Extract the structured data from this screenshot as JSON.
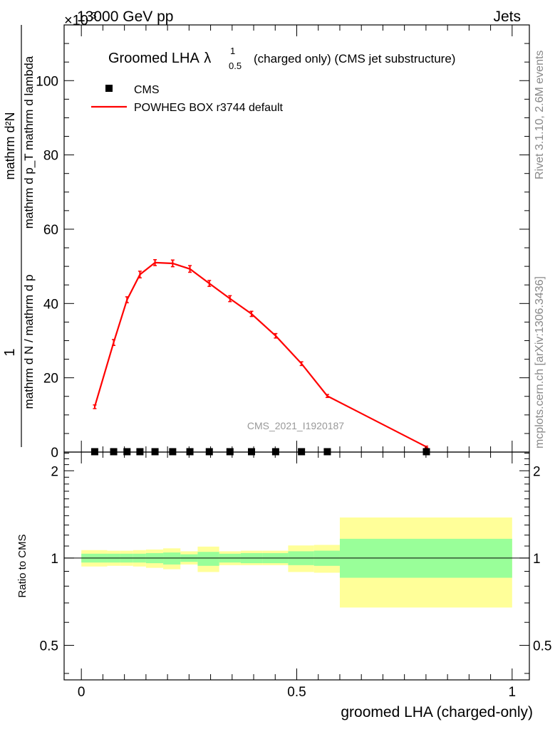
{
  "header": {
    "energy_label": "13000 GeV pp",
    "process_label": "Jets",
    "exponent_label": "×10",
    "exponent_power": "-3"
  },
  "side_labels": {
    "rivet": "Rivet 3.1.10,  2.6M events",
    "mcplots": "mcplots.cern.ch [arXiv:1306.3436]"
  },
  "watermark": "CMS_2021_I1920187",
  "chart_data": [
    {
      "id": "main",
      "type": "line",
      "title": {
        "main": "Groomed LHA",
        "lambda": "λ",
        "sup": "1",
        "sub": "0.5",
        "suffix": "(charged only) (CMS jet substructure)"
      },
      "ylabel": {
        "numerator": "1",
        "numerator_detail": "mathrm dN",
        "denominator": "mathrm d N / mathrm d p",
        "denominator_detail": "mathrm d p  mathrm d lambda",
        "denominator_sub": "T",
        "full_numerator": "mathrm d²N",
        "full_denominator": "mathrm d p_T mathrm d lambda"
      },
      "xlim": [
        -0.04,
        1.04
      ],
      "ylim": [
        0,
        115
      ],
      "y_ticks": [
        0,
        20,
        40,
        60,
        80,
        100
      ],
      "legend": {
        "position": "top-left",
        "entries": [
          {
            "label": "CMS",
            "marker": "square",
            "color": "#000000"
          },
          {
            "label": "POWHEG BOX r3744 default",
            "marker": "line",
            "color": "#ff0000"
          }
        ]
      },
      "series": [
        {
          "name": "CMS",
          "color": "#000000",
          "x": [
            0.031,
            0.075,
            0.106,
            0.136,
            0.171,
            0.212,
            0.252,
            0.297,
            0.345,
            0.395,
            0.451,
            0.511,
            0.571,
            0.801
          ],
          "y": [
            0.1,
            0.1,
            0.1,
            0.1,
            0.1,
            0.1,
            0.1,
            0.1,
            0.1,
            0.1,
            0.1,
            0.1,
            0.1,
            0.1
          ]
        },
        {
          "name": "POWHEG BOX r3744 default",
          "color": "#ff0000",
          "x": [
            0.031,
            0.075,
            0.106,
            0.136,
            0.171,
            0.212,
            0.252,
            0.297,
            0.345,
            0.395,
            0.451,
            0.511,
            0.571,
            0.801
          ],
          "y": [
            12.2,
            29.5,
            41.0,
            47.8,
            51.0,
            50.8,
            49.3,
            45.4,
            41.3,
            37.2,
            31.3,
            23.8,
            15.1,
            1.4
          ],
          "err": [
            0.5,
            0.8,
            0.8,
            0.9,
            0.8,
            0.9,
            0.9,
            0.8,
            0.8,
            0.7,
            0.6,
            0.5,
            0.4,
            0.2
          ]
        }
      ]
    },
    {
      "id": "ratio",
      "type": "area",
      "ylabel": "Ratio to CMS",
      "xlabel": "groomed LHA (charged-only)",
      "xlim": [
        -0.04,
        1.04
      ],
      "ylim": [
        0.38,
        2.32
      ],
      "log_y": true,
      "y_ticks": [
        0.5,
        1,
        2
      ],
      "y_tick_labels": [
        "0.5",
        "1",
        "2"
      ],
      "x_ticks": [
        0,
        0.5,
        1
      ],
      "x_tick_labels": [
        "0",
        "0.5",
        "1"
      ],
      "bins": [
        {
          "lo": 0.0,
          "hi": 0.06,
          "inner": [
            0.965,
            1.035
          ],
          "outer": [
            0.935,
            1.065
          ]
        },
        {
          "lo": 0.06,
          "hi": 0.09,
          "inner": [
            0.965,
            1.035
          ],
          "outer": [
            0.94,
            1.06
          ]
        },
        {
          "lo": 0.09,
          "hi": 0.12,
          "inner": [
            0.965,
            1.035
          ],
          "outer": [
            0.94,
            1.06
          ]
        },
        {
          "lo": 0.12,
          "hi": 0.15,
          "inner": [
            0.965,
            1.035
          ],
          "outer": [
            0.935,
            1.065
          ]
        },
        {
          "lo": 0.15,
          "hi": 0.19,
          "inner": [
            0.96,
            1.04
          ],
          "outer": [
            0.925,
            1.07
          ]
        },
        {
          "lo": 0.19,
          "hi": 0.23,
          "inner": [
            0.95,
            1.045
          ],
          "outer": [
            0.915,
            1.08
          ]
        },
        {
          "lo": 0.23,
          "hi": 0.27,
          "inner": [
            0.97,
            1.03
          ],
          "outer": [
            0.95,
            1.055
          ]
        },
        {
          "lo": 0.27,
          "hi": 0.32,
          "inner": [
            0.94,
            1.05
          ],
          "outer": [
            0.895,
            1.095
          ]
        },
        {
          "lo": 0.32,
          "hi": 0.37,
          "inner": [
            0.965,
            1.035
          ],
          "outer": [
            0.945,
            1.055
          ]
        },
        {
          "lo": 0.37,
          "hi": 0.42,
          "inner": [
            0.96,
            1.04
          ],
          "outer": [
            0.945,
            1.06
          ]
        },
        {
          "lo": 0.42,
          "hi": 0.48,
          "inner": [
            0.96,
            1.04
          ],
          "outer": [
            0.945,
            1.06
          ]
        },
        {
          "lo": 0.48,
          "hi": 0.54,
          "inner": [
            0.945,
            1.055
          ],
          "outer": [
            0.895,
            1.105
          ]
        },
        {
          "lo": 0.54,
          "hi": 0.6,
          "inner": [
            0.94,
            1.06
          ],
          "outer": [
            0.89,
            1.11
          ]
        },
        {
          "lo": 0.6,
          "hi": 1.0,
          "inner": [
            0.855,
            1.165
          ],
          "outer": [
            0.675,
            1.38
          ]
        }
      ],
      "band_colors": {
        "inner": "#99ff99",
        "outer": "#ffff99"
      },
      "reference_line": 1
    }
  ]
}
